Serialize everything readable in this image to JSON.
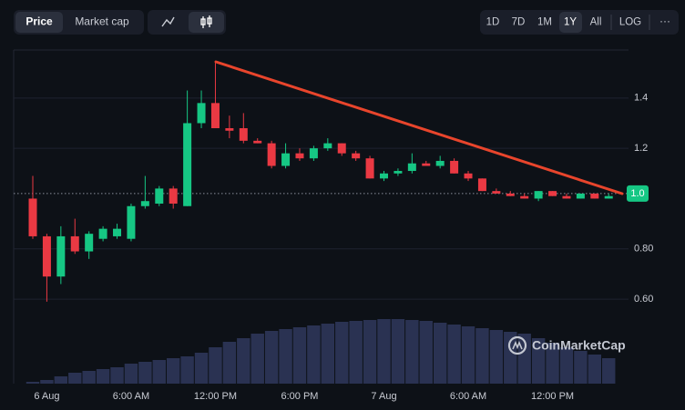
{
  "toolbar": {
    "tabs": [
      "Price",
      "Market cap"
    ],
    "ranges": [
      "1D",
      "7D",
      "1M",
      "1Y",
      "All"
    ],
    "scale": "LOG",
    "more": "···"
  },
  "watermark": "CoinMarketCap",
  "chart_data": {
    "type": "candlestick",
    "categories": [
      null,
      "6 Aug",
      null,
      null,
      null,
      null,
      null,
      "6:00 AM",
      null,
      null,
      null,
      null,
      null,
      "12:00 PM",
      null,
      null,
      null,
      null,
      null,
      "6:00 PM",
      null,
      null,
      null,
      null,
      null,
      "7 Aug",
      null,
      null,
      null,
      null,
      null,
      "6:00 AM",
      null,
      null,
      null,
      null,
      null,
      "12:00 PM",
      null,
      null,
      null,
      null
    ],
    "open": [
      1.0,
      0.85,
      0.69,
      0.85,
      0.79,
      0.84,
      0.85,
      0.84,
      0.97,
      0.98,
      1.04,
      0.97,
      1.3,
      1.38,
      1.28,
      1.28,
      1.23,
      1.22,
      1.13,
      1.18,
      1.16,
      1.2,
      1.22,
      1.18,
      1.16,
      1.08,
      1.1,
      1.11,
      1.14,
      1.13,
      1.15,
      1.1,
      1.08,
      1.03,
      1.02,
      1.01,
      1.0,
      1.03,
      1.01,
      1.0,
      1.02,
      1.0
    ],
    "high": [
      1.09,
      0.86,
      0.89,
      0.92,
      0.87,
      0.89,
      0.9,
      0.98,
      1.09,
      1.05,
      1.05,
      1.43,
      1.43,
      1.54,
      1.33,
      1.34,
      1.24,
      1.23,
      1.22,
      1.2,
      1.21,
      1.24,
      1.22,
      1.19,
      1.17,
      1.11,
      1.12,
      1.18,
      1.15,
      1.17,
      1.16,
      1.11,
      1.08,
      1.04,
      1.03,
      1.02,
      1.03,
      1.03,
      1.02,
      1.02,
      1.02,
      1.02
    ],
    "low": [
      0.84,
      0.59,
      0.66,
      0.78,
      0.76,
      0.83,
      0.84,
      0.83,
      0.96,
      0.97,
      0.96,
      0.97,
      1.28,
      1.28,
      1.24,
      1.22,
      1.22,
      1.12,
      1.12,
      1.15,
      1.15,
      1.19,
      1.17,
      1.15,
      1.08,
      1.07,
      1.09,
      1.1,
      1.13,
      1.12,
      1.1,
      1.07,
      1.03,
      1.02,
      1.01,
      1.0,
      0.99,
      1.01,
      1.0,
      1.0,
      1.0,
      1.0
    ],
    "close": [
      0.85,
      0.69,
      0.85,
      0.79,
      0.86,
      0.88,
      0.88,
      0.97,
      0.99,
      1.04,
      0.98,
      1.3,
      1.38,
      1.28,
      1.27,
      1.23,
      1.22,
      1.13,
      1.18,
      1.16,
      1.2,
      1.22,
      1.18,
      1.16,
      1.08,
      1.1,
      1.11,
      1.14,
      1.13,
      1.15,
      1.1,
      1.08,
      1.03,
      1.02,
      1.01,
      1.0,
      1.03,
      1.01,
      1.0,
      1.02,
      1.0,
      1.01
    ],
    "volume": [
      2,
      4,
      8,
      12,
      14,
      16,
      18,
      22,
      24,
      26,
      28,
      30,
      34,
      40,
      46,
      50,
      55,
      58,
      60,
      62,
      64,
      66,
      68,
      69,
      70,
      71,
      71,
      70,
      69,
      67,
      65,
      63,
      61,
      59,
      57,
      55,
      50,
      45,
      40,
      36,
      32,
      28
    ],
    "up_color": "#16c784",
    "down_color": "#ea3943",
    "volume_color": "#2a3252",
    "ylim": [
      0.264,
      1.591
    ],
    "yticks": [
      {
        "value": 0.6,
        "label": "0.60"
      },
      {
        "value": 0.8,
        "label": "0.80"
      },
      1.2,
      1.4
    ],
    "grid": true,
    "last_price": {
      "value": 1.02,
      "label": "1.0"
    }
  }
}
